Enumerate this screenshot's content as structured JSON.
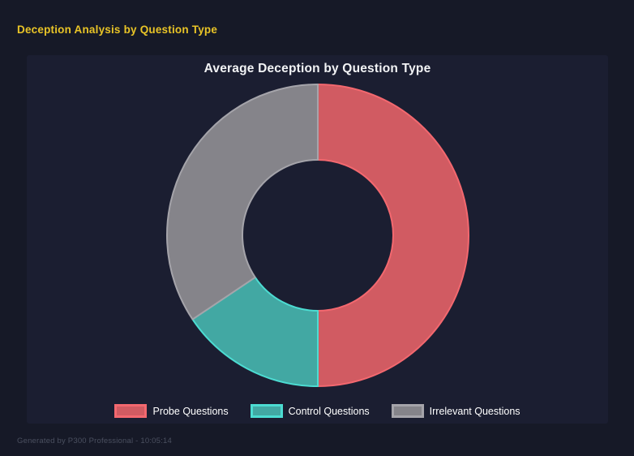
{
  "page": {
    "title": "Deception Analysis by Question Type",
    "footer": "Generated by P300 Professional - 10:05:14"
  },
  "colors": {
    "page_bg": "#161927",
    "panel_bg": "#1b1e31",
    "heading": "#e9c427",
    "title_text": "#f2f3f5",
    "legend_text": "#ffffff",
    "footer_text": "#4b5060"
  },
  "chart_data": {
    "type": "pie",
    "variant": "doughnut",
    "title": "Average Deception by Question Type",
    "legend_position": "bottom",
    "cutout_percent": 50,
    "start_angle_deg": -90,
    "segments": [
      {
        "label": "Probe Questions",
        "percent": 50.0,
        "fill": "#d15b62",
        "border": "#f3686f"
      },
      {
        "label": "Control Questions",
        "percent": 15.6,
        "fill": "#42a8a3",
        "border": "#4cdcd2"
      },
      {
        "label": "Irrelevant Questions",
        "percent": 34.4,
        "fill": "#85848a",
        "border": "#a5a4aa"
      }
    ]
  }
}
